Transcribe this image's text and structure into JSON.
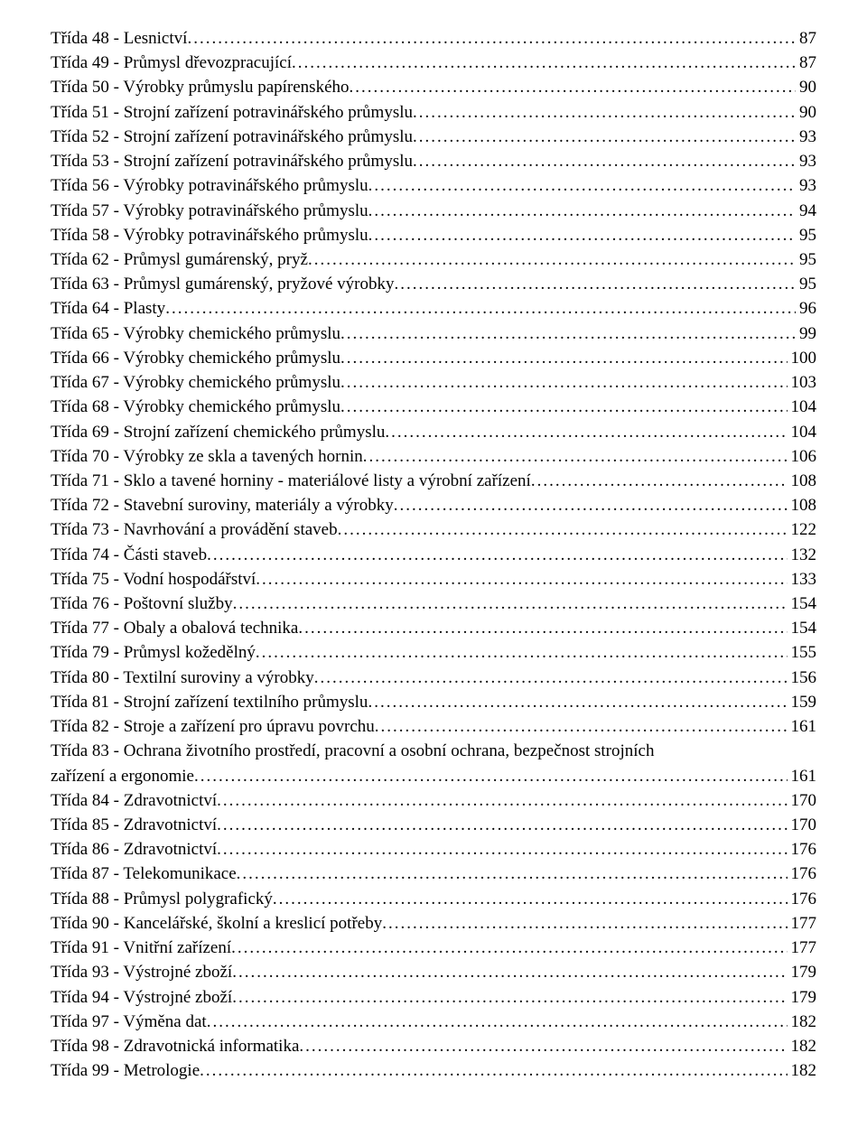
{
  "styles": {
    "font_family": "Times New Roman",
    "font_size_pt": 14,
    "text_color": "#000000",
    "background_color": "#ffffff",
    "dot_leader_char": ".",
    "line_height": 1.38
  },
  "toc": [
    {
      "label": "Třída 48 - Lesnictví",
      "page": "87"
    },
    {
      "label": "Třída 49 - Průmysl dřevozpracující",
      "page": "87"
    },
    {
      "label": "Třída 50 - Výrobky průmyslu papírenského",
      "page": "90"
    },
    {
      "label": "Třída 51 - Strojní zařízení potravinářského průmyslu",
      "page": "90"
    },
    {
      "label": "Třída 52 - Strojní zařízení potravinářského průmyslu",
      "page": "93"
    },
    {
      "label": "Třída 53 - Strojní zařízení potravinářského průmyslu",
      "page": "93"
    },
    {
      "label": "Třída 56 - Výrobky potravinářského průmyslu",
      "page": "93"
    },
    {
      "label": "Třída 57 - Výrobky potravinářského průmyslu",
      "page": "94"
    },
    {
      "label": "Třída 58 - Výrobky potravinářského průmyslu",
      "page": "95"
    },
    {
      "label": "Třída 62 - Průmysl gumárenský, pryž",
      "page": "95"
    },
    {
      "label": "Třída 63 - Průmysl gumárenský, pryžové výrobky",
      "page": "95"
    },
    {
      "label": "Třída 64 - Plasty",
      "page": "96"
    },
    {
      "label": "Třída 65 - Výrobky chemického průmyslu",
      "page": "99"
    },
    {
      "label": "Třída 66 - Výrobky chemického průmyslu",
      "page": "100"
    },
    {
      "label": "Třída 67 - Výrobky chemického průmyslu",
      "page": "103"
    },
    {
      "label": "Třída 68 - Výrobky chemického průmyslu",
      "page": "104"
    },
    {
      "label": "Třída 69 - Strojní zařízení chemického průmyslu",
      "page": "104"
    },
    {
      "label": "Třída 70 - Výrobky ze skla a tavených hornin",
      "page": "106"
    },
    {
      "label": "Třída 71 - Sklo a tavené horniny - materiálové listy a výrobní zařízení",
      "page": "108"
    },
    {
      "label": "Třída 72 - Stavební suroviny, materiály a výrobky",
      "page": "108"
    },
    {
      "label": "Třída 73 - Navrhování a provádění staveb",
      "page": "122"
    },
    {
      "label": "Třída 74 - Části staveb",
      "page": "132"
    },
    {
      "label": "Třída 75 - Vodní hospodářství",
      "page": "133"
    },
    {
      "label": "Třída 76 - Poštovní služby",
      "page": "154"
    },
    {
      "label": "Třída 77 - Obaly a obalová technika",
      "page": "154"
    },
    {
      "label": "Třída 79 - Průmysl kožedělný",
      "page": "155"
    },
    {
      "label": "Třída 80 - Textilní suroviny a výrobky",
      "page": "156"
    },
    {
      "label": "Třída 81 - Strojní zařízení textilního průmyslu",
      "page": "159"
    },
    {
      "label": "Třída 82 - Stroje a zařízení pro úpravu povrchu",
      "page": "161"
    },
    {
      "label": "Třída 83 - Ochrana životního prostředí, pracovní a osobní ochrana, bezpečnost strojních zařízení a ergonomie",
      "page": "161",
      "wrap": true
    },
    {
      "label": "Třída 84 - Zdravotnictví",
      "page": "170"
    },
    {
      "label": "Třída 85 - Zdravotnictví",
      "page": "170"
    },
    {
      "label": "Třída 86 - Zdravotnictví",
      "page": "176"
    },
    {
      "label": "Třída 87 - Telekomunikace",
      "page": "176"
    },
    {
      "label": "Třída 88 - Průmysl polygrafický",
      "page": "176"
    },
    {
      "label": "Třída 90 - Kancelářské, školní a kreslicí potřeby",
      "page": "177"
    },
    {
      "label": "Třída 91 - Vnitřní zařízení",
      "page": "177"
    },
    {
      "label": "Třída 93 - Výstrojné zboží",
      "page": "179"
    },
    {
      "label": "Třída 94 - Výstrojné zboží",
      "page": "179"
    },
    {
      "label": "Třída 97 - Výměna dat",
      "page": "182"
    },
    {
      "label": "Třída 98 - Zdravotnická informatika",
      "page": "182"
    },
    {
      "label": "Třída 99 - Metrologie",
      "page": "182"
    }
  ]
}
